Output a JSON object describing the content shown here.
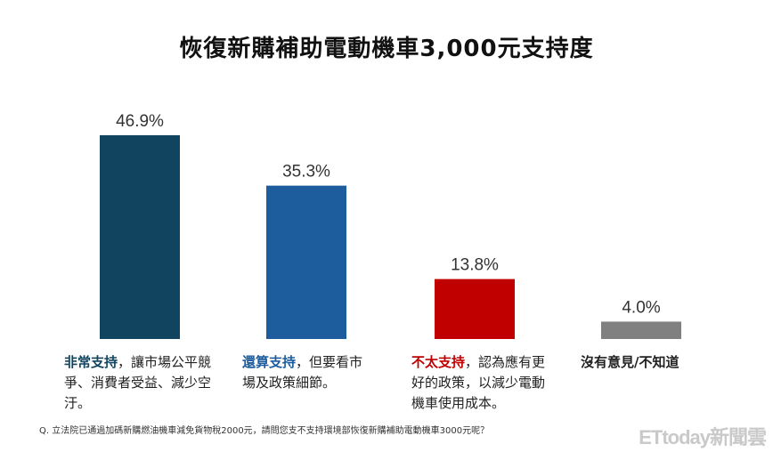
{
  "chart_data": {
    "type": "bar",
    "title": "恢復新購補助電動機車3,000元支持度",
    "categories": [
      "非常支持",
      "還算支持",
      "不太支持",
      "沒有意見/不知道"
    ],
    "values": [
      46.9,
      35.3,
      13.8,
      4.0
    ],
    "value_labels": [
      "46.9%",
      "35.3%",
      "13.8%",
      "4.0%"
    ],
    "colors": [
      "#11445e",
      "#1d5c9d",
      "#c00000",
      "#808080"
    ],
    "descriptions": [
      "，讓市場公平競爭、消費者受益、減少空汙。",
      "，但要看市場及政策細節。",
      "，認為應有更好的政策，以減少電動機車使用成本。",
      ""
    ],
    "ylim": [
      0,
      50
    ],
    "xlabel": "",
    "ylabel": ""
  },
  "footnote": "Q. 立法院已通過加碼新購燃油機車減免貨物稅2000元，請問您支不支持環境部恢復新購補助電動機車3000元呢？",
  "watermark": "ETtoday新聞雲"
}
